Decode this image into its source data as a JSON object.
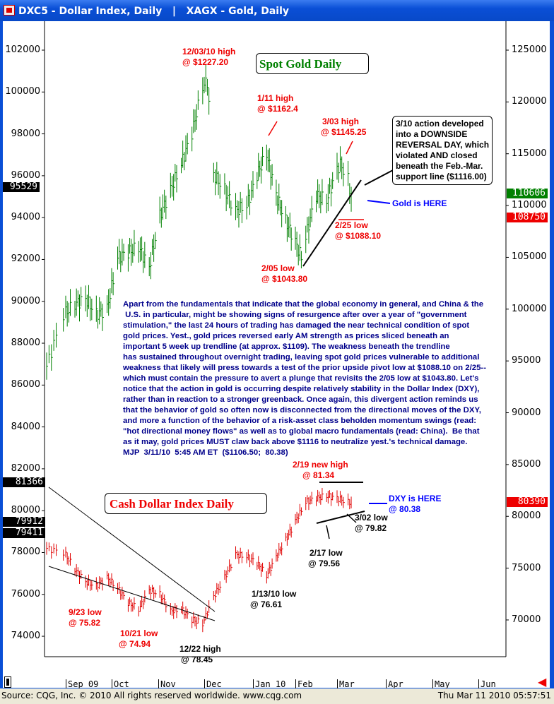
{
  "window": {
    "title": "DXC5 - Dollar Index, Daily   |   XAGX - Gold, Daily"
  },
  "status": {
    "source": "Source: CQG, Inc. © 2010 All rights reserved worldwide. www.cqg.com",
    "timestamp": "Thu Mar 11 2010 05:57:51"
  },
  "colors": {
    "gold_bars": "#008000",
    "dollar_bars": "#e00000",
    "annotation_red": "#e00000",
    "annotation_blue": "#0000ff",
    "text_navy": "#00008b"
  },
  "chart_data": [
    {
      "type": "bar",
      "name": "XAGX - Gold, Daily",
      "axis": "right",
      "title": "Spot Gold Daily",
      "yticks": [
        125000,
        120000,
        115000,
        110000,
        105000,
        100000,
        95000,
        90000,
        85000,
        80000,
        75000,
        70000
      ],
      "ylim": [
        68500,
        128000
      ],
      "series": [
        {
          "dates": [
            "2009-08-24",
            "2009-08-31",
            "2009-09-07",
            "2009-09-14",
            "2009-09-21",
            "2009-09-28",
            "2009-10-05",
            "2009-10-12",
            "2009-10-19",
            "2009-10-26",
            "2009-11-02",
            "2009-11-09",
            "2009-11-16",
            "2009-11-23",
            "2009-11-30",
            "2009-12-03",
            "2009-12-07",
            "2009-12-14",
            "2009-12-21",
            "2009-12-28",
            "2010-01-04",
            "2010-01-11",
            "2010-01-18",
            "2010-01-25",
            "2010-02-01",
            "2010-02-05",
            "2010-02-08",
            "2010-02-15",
            "2010-02-22",
            "2010-03-01",
            "2010-03-03",
            "2010-03-08",
            "2010-03-10"
          ],
          "values": [
            94500,
            99500,
            100500,
            101000,
            99500,
            100000,
            105000,
            105500,
            106000,
            104000,
            109000,
            111500,
            114000,
            117000,
            121500,
            122000,
            113000,
            111500,
            109500,
            110000,
            113000,
            115000,
            111000,
            108500,
            106500,
            105000,
            107000,
            111000,
            110500,
            113500,
            114000,
            112500,
            110606
          ]
        }
      ],
      "last_value_tag": "110606",
      "support_tag": "108750"
    },
    {
      "type": "bar",
      "name": "DXC5 - Dollar Index, Daily",
      "axis": "left",
      "title": "Cash Dollar Index Daily",
      "yticks": [
        102000,
        100000,
        98000,
        96000,
        94000,
        92000,
        90000,
        88000,
        86000,
        84000,
        82000,
        80000,
        78000,
        76000,
        74000
      ],
      "ylim": [
        72800,
        104000
      ],
      "series": [
        {
          "dates": [
            "2009-08-24",
            "2009-08-31",
            "2009-09-07",
            "2009-09-14",
            "2009-09-21",
            "2009-09-28",
            "2009-10-05",
            "2009-10-12",
            "2009-10-19",
            "2009-10-26",
            "2009-11-02",
            "2009-11-09",
            "2009-11-16",
            "2009-11-23",
            "2009-11-30",
            "2009-12-07",
            "2009-12-14",
            "2009-12-21",
            "2009-12-28",
            "2010-01-04",
            "2010-01-11",
            "2010-01-18",
            "2010-01-25",
            "2010-02-01",
            "2010-02-08",
            "2010-02-15",
            "2010-02-22",
            "2010-03-01",
            "2010-03-08",
            "2010-03-10"
          ],
          "values": [
            78200,
            78000,
            77200,
            76600,
            76400,
            76800,
            76300,
            75600,
            75300,
            76200,
            76000,
            75200,
            75300,
            74800,
            74600,
            75900,
            76800,
            77900,
            77800,
            77500,
            76900,
            77800,
            78600,
            79500,
            80400,
            80600,
            80700,
            80600,
            80400,
            80390
          ]
        }
      ],
      "last_value_tag": "80390"
    }
  ],
  "left_tags": [
    "95529",
    "81366",
    "79912",
    "79411"
  ],
  "xaxis": {
    "months": [
      "Sep 09",
      "Oct",
      "Nov",
      "Dec",
      "Jan 10",
      "Feb",
      "Mar",
      "Apr",
      "May",
      "Jun"
    ]
  },
  "gold_annotations": {
    "title": "Spot Gold Daily",
    "dec_high": [
      "12/03/10 high",
      "@ $1227.20"
    ],
    "jan_high": [
      "1/11 high",
      "@ $1162.4"
    ],
    "mar_high": [
      "3/03 high",
      "@ $1145.25"
    ],
    "feb5_low": [
      "2/05 low",
      "@ $1043.80"
    ],
    "feb25_low": [
      "2/25 low",
      "@ $1088.10"
    ],
    "here": "Gold is HERE",
    "callout": [
      "3/10 action developed",
      "into a DOWNSIDE",
      "REVERSAL DAY, which",
      "violated AND closed",
      "beneath the Feb.-Mar.",
      "support line ($1116.00)"
    ]
  },
  "dollar_annotations": {
    "title": "Cash Dollar Index Daily",
    "feb19_high": [
      "2/19 new high",
      "@ 81.34"
    ],
    "here": [
      "DXY is HERE",
      "@ 80.38"
    ],
    "sep23_low": [
      "9/23 low",
      "@ 75.82"
    ],
    "oct21_low": [
      "10/21 low",
      "@ 74.94"
    ],
    "dec22_high": [
      "12/22 high",
      "@ 78.45"
    ],
    "jan13_low": [
      "1/13/10 low",
      "@ 76.61"
    ],
    "feb17_low": [
      "2/17 low",
      "@ 79.56"
    ],
    "mar02_low": [
      "3/02 low",
      "@ 79.82"
    ]
  },
  "commentary": "Apart from the fundamentals that indicate that the global economy in general, and China & the\n U.S. in particular, might be showing signs of resurgence after over a year of \"government\nstimulation,\" the last 24 hours of trading has damaged the near technical condition of spot\ngold prices. Yest., gold prices reversed early AM strength as prices sliced beneath an\nimportant 5 week up trendline (at approx. $1109). The weakness beneath the trendline\nhas sustained throughout overnight trading, leaving spot gold prices vulnerable to additional\nweakness that likely will press towards a test of the prior upside pivot low at $1088.10 on 2/25--\nwhich must contain the pressure to avert a plunge that revisits the 2/05 low at $1043.80. Let's\nnotice that the action in gold is occurring despite relatively stability in the Dollar Index (DXY),\nrather than in reaction to a stronger greenback. Once again, this divergent action reminds us\nthat the behavior of gold so often now is disconnected from the directional moves of the DXY,\nand more a function of the behavior of a risk-asset class beholden momentum swings (read:\n\"hot directional money flows\" as well as to global macro fundamentals (read: China).  Be that\nas it may, gold prices MUST claw back above $1116 to neutralize yest.'s technical damage.\nMJP  3/11/10  5:45 AM ET  ($1106.50;  80.38)"
}
